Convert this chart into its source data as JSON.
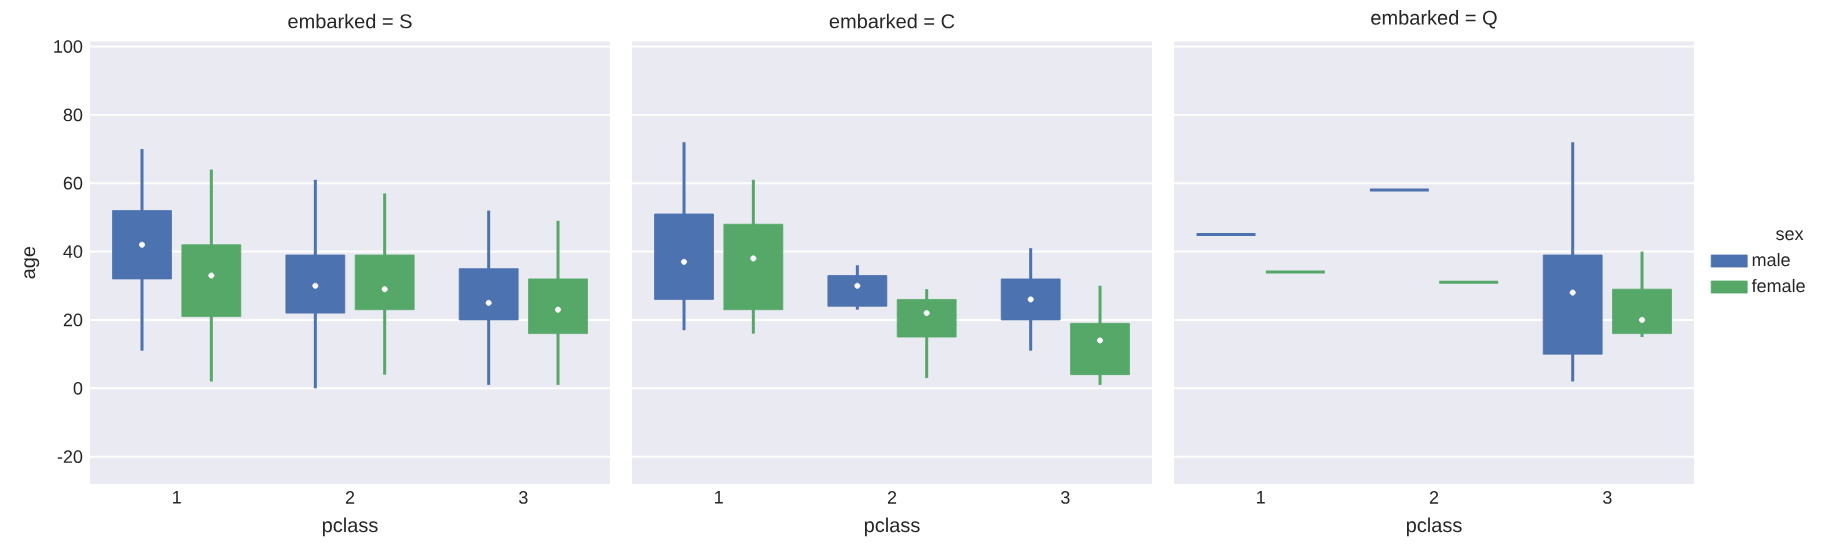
{
  "chart_data": [
    {
      "type": "box",
      "title": "embarked = S",
      "xlabel": "pclass",
      "ylabel": "age",
      "categories": [
        "1",
        "2",
        "3"
      ],
      "ylim": [
        -28,
        101.5
      ],
      "yticks": [
        -20,
        0,
        20,
        40,
        60,
        80,
        100
      ],
      "grid": "y",
      "series": [
        {
          "color": "#4c72b0",
          "boxes": [
            {
              "low": 11,
              "q1": 32,
              "median": 42,
              "q3": 52,
              "high": 70
            },
            {
              "low": 0,
              "q1": 22,
              "median": 30,
              "q3": 39,
              "high": 61
            },
            {
              "low": 1,
              "q1": 20,
              "median": 25,
              "q3": 35,
              "high": 52
            }
          ]
        },
        {
          "color": "#55a868",
          "boxes": [
            {
              "low": 2,
              "q1": 21,
              "median": 33,
              "q3": 42,
              "high": 64
            },
            {
              "low": 4,
              "q1": 23,
              "median": 29,
              "q3": 39,
              "high": 57
            },
            {
              "low": 1,
              "q1": 16,
              "median": 23,
              "q3": 32,
              "high": 49
            }
          ]
        }
      ]
    },
    {
      "type": "box",
      "title": "embarked = C",
      "xlabel": "pclass",
      "categories": [
        "1",
        "2",
        "3"
      ],
      "ylim": [
        -28,
        101.5
      ],
      "yticks": [
        -20,
        0,
        20,
        40,
        60,
        80,
        100
      ],
      "grid": "y",
      "tick_labels": "x",
      "series": [
        {
          "color": "#4c72b0",
          "boxes": [
            {
              "low": 17,
              "q1": 26,
              "median": 37,
              "q3": 51,
              "high": 72
            },
            {
              "low": 23,
              "q1": 24,
              "median": 30,
              "q3": 33,
              "high": 36
            },
            {
              "low": 11,
              "q1": 20,
              "median": 26,
              "q3": 32,
              "high": 41
            }
          ]
        },
        {
          "color": "#55a868",
          "boxes": [
            {
              "low": 16,
              "q1": 23,
              "median": 38,
              "q3": 48,
              "high": 61
            },
            {
              "low": 3,
              "q1": 15,
              "median": 22,
              "q3": 26,
              "high": 29
            },
            {
              "low": 1,
              "q1": 4,
              "median": 14,
              "q3": 19,
              "high": 30
            }
          ]
        }
      ]
    },
    {
      "type": "box",
      "title": "embarked = Q",
      "xlabel": "pclass",
      "categories": [
        "1",
        "2",
        "3"
      ],
      "ylim": [
        -28,
        101.5
      ],
      "yticks": [
        -20,
        0,
        20,
        40,
        60,
        80,
        100
      ],
      "grid": "y",
      "tick_labels": "x",
      "legend": "right",
      "legend_title": "sex",
      "series": [
        {
          "name": "male",
          "color": "#4c72b0",
          "boxes": [
            {
              "low": 45,
              "q1": 45,
              "median": 45,
              "q3": 45,
              "high": 45
            },
            {
              "low": 58,
              "q1": 58,
              "median": 58,
              "q3": 58,
              "high": 58
            },
            {
              "low": 2,
              "q1": 10,
              "median": 28,
              "q3": 39,
              "high": 72
            }
          ]
        },
        {
          "name": "female",
          "color": "#55a868",
          "boxes": [
            {
              "low": 34,
              "q1": 34,
              "median": 34,
              "q3": 34,
              "high": 34
            },
            {
              "low": 31,
              "q1": 31,
              "median": 31,
              "q3": 31,
              "high": 31
            },
            {
              "low": 15,
              "q1": 16,
              "median": 20,
              "q3": 29,
              "high": 40
            }
          ]
        }
      ]
    }
  ]
}
